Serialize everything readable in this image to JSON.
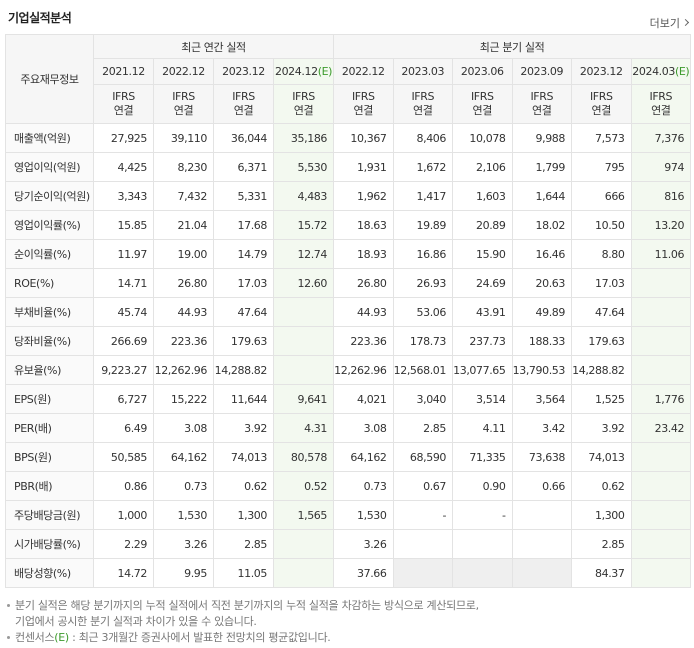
{
  "header": {
    "title": "기업실적분석",
    "more": "더보기"
  },
  "table": {
    "corner": "주요재무정보",
    "groups": [
      "최근 연간 실적",
      "최근 분기 실적"
    ],
    "periods": [
      "2021.12",
      "2022.12",
      "2023.12",
      {
        "date": "2024.12",
        "mark": "(E)"
      },
      "2022.12",
      "2023.03",
      "2023.06",
      "2023.09",
      "2023.12",
      {
        "date": "2024.03",
        "mark": "(E)"
      }
    ],
    "ifrs": [
      [
        "IFRS",
        "연결"
      ],
      [
        "IFRS",
        "연결"
      ],
      [
        "IFRS",
        "연결"
      ],
      [
        "IFRS",
        "연결"
      ],
      [
        "IFRS",
        "연결"
      ],
      [
        "IFRS",
        "연결"
      ],
      [
        "IFRS",
        "연결"
      ],
      [
        "IFRS",
        "연결"
      ],
      [
        "IFRS",
        "연결"
      ],
      [
        "IFRS",
        "연결"
      ]
    ],
    "rows": [
      {
        "label": "매출액(억원)",
        "values": [
          "27,925",
          "39,110",
          "36,044",
          "35,186",
          "10,367",
          "8,406",
          "10,078",
          "9,988",
          "7,573",
          "7,376"
        ]
      },
      {
        "label": "영업이익(억원)",
        "values": [
          "4,425",
          "8,230",
          "6,371",
          "5,530",
          "1,931",
          "1,672",
          "2,106",
          "1,799",
          "795",
          "974"
        ]
      },
      {
        "label": "당기순이익(억원)",
        "values": [
          "3,343",
          "7,432",
          "5,331",
          "4,483",
          "1,962",
          "1,417",
          "1,603",
          "1,644",
          "666",
          "816"
        ]
      },
      {
        "label": "영업이익률(%)",
        "values": [
          "15.85",
          "21.04",
          "17.68",
          "15.72",
          "18.63",
          "19.89",
          "20.89",
          "18.02",
          "10.50",
          "13.20"
        ]
      },
      {
        "label": "순이익률(%)",
        "values": [
          "11.97",
          "19.00",
          "14.79",
          "12.74",
          "18.93",
          "16.86",
          "15.90",
          "16.46",
          "8.80",
          "11.06"
        ]
      },
      {
        "label": "ROE(%)",
        "values": [
          "14.71",
          "26.80",
          "17.03",
          "12.60",
          "26.80",
          "26.93",
          "24.69",
          "20.63",
          "17.03",
          null
        ]
      },
      {
        "label": "부채비율(%)",
        "values": [
          "45.74",
          "44.93",
          "47.64",
          null,
          "44.93",
          "53.06",
          "43.91",
          "49.89",
          "47.64",
          null
        ]
      },
      {
        "label": "당좌비율(%)",
        "values": [
          "266.69",
          "223.36",
          "179.63",
          null,
          "223.36",
          "178.73",
          "237.73",
          "188.33",
          "179.63",
          null
        ]
      },
      {
        "label": "유보율(%)",
        "values": [
          "9,223.27",
          "12,262.96",
          "14,288.82",
          null,
          "12,262.96",
          "12,568.01",
          "13,077.65",
          "13,790.53",
          "14,288.82",
          null
        ]
      },
      {
        "label": "EPS(원)",
        "values": [
          "6,727",
          "15,222",
          "11,644",
          "9,641",
          "4,021",
          "3,040",
          "3,514",
          "3,564",
          "1,525",
          "1,776"
        ]
      },
      {
        "label": "PER(배)",
        "values": [
          "6.49",
          "3.08",
          "3.92",
          "4.31",
          "3.08",
          "2.85",
          "4.11",
          "3.42",
          "3.92",
          "23.42"
        ]
      },
      {
        "label": "BPS(원)",
        "values": [
          "50,585",
          "64,162",
          "74,013",
          "80,578",
          "64,162",
          "68,590",
          "71,335",
          "73,638",
          "74,013",
          null
        ]
      },
      {
        "label": "PBR(배)",
        "values": [
          "0.86",
          "0.73",
          "0.62",
          "0.52",
          "0.73",
          "0.67",
          "0.90",
          "0.66",
          "0.62",
          null
        ]
      },
      {
        "label": "주당배당금(원)",
        "values": [
          "1,000",
          "1,530",
          "1,300",
          "1,565",
          "1,530",
          "-",
          "-",
          null,
          "1,300",
          null
        ]
      },
      {
        "label": "시가배당률(%)",
        "values": [
          "2.29",
          "3.26",
          "2.85",
          null,
          "3.26",
          null,
          null,
          null,
          "2.85",
          null
        ]
      },
      {
        "label": "배당성향(%)",
        "values": [
          "14.72",
          "9.95",
          "11.05",
          null,
          "37.66",
          null,
          null,
          null,
          "84.37",
          null
        ]
      }
    ]
  },
  "notes": [
    [
      "분기 실적은 해당 분기까지의 누적 실적에서 직전 분기까지의 누적 실적을 차감하는 방식으로 계산되므로,",
      "기업에서 공시한 분기 실적과 차이가 있을 수 있습니다."
    ],
    [
      "컨센서스",
      "(E)",
      " : 최근 3개월간 증권사에서 발표한 전망치의 평균값입니다."
    ]
  ]
}
